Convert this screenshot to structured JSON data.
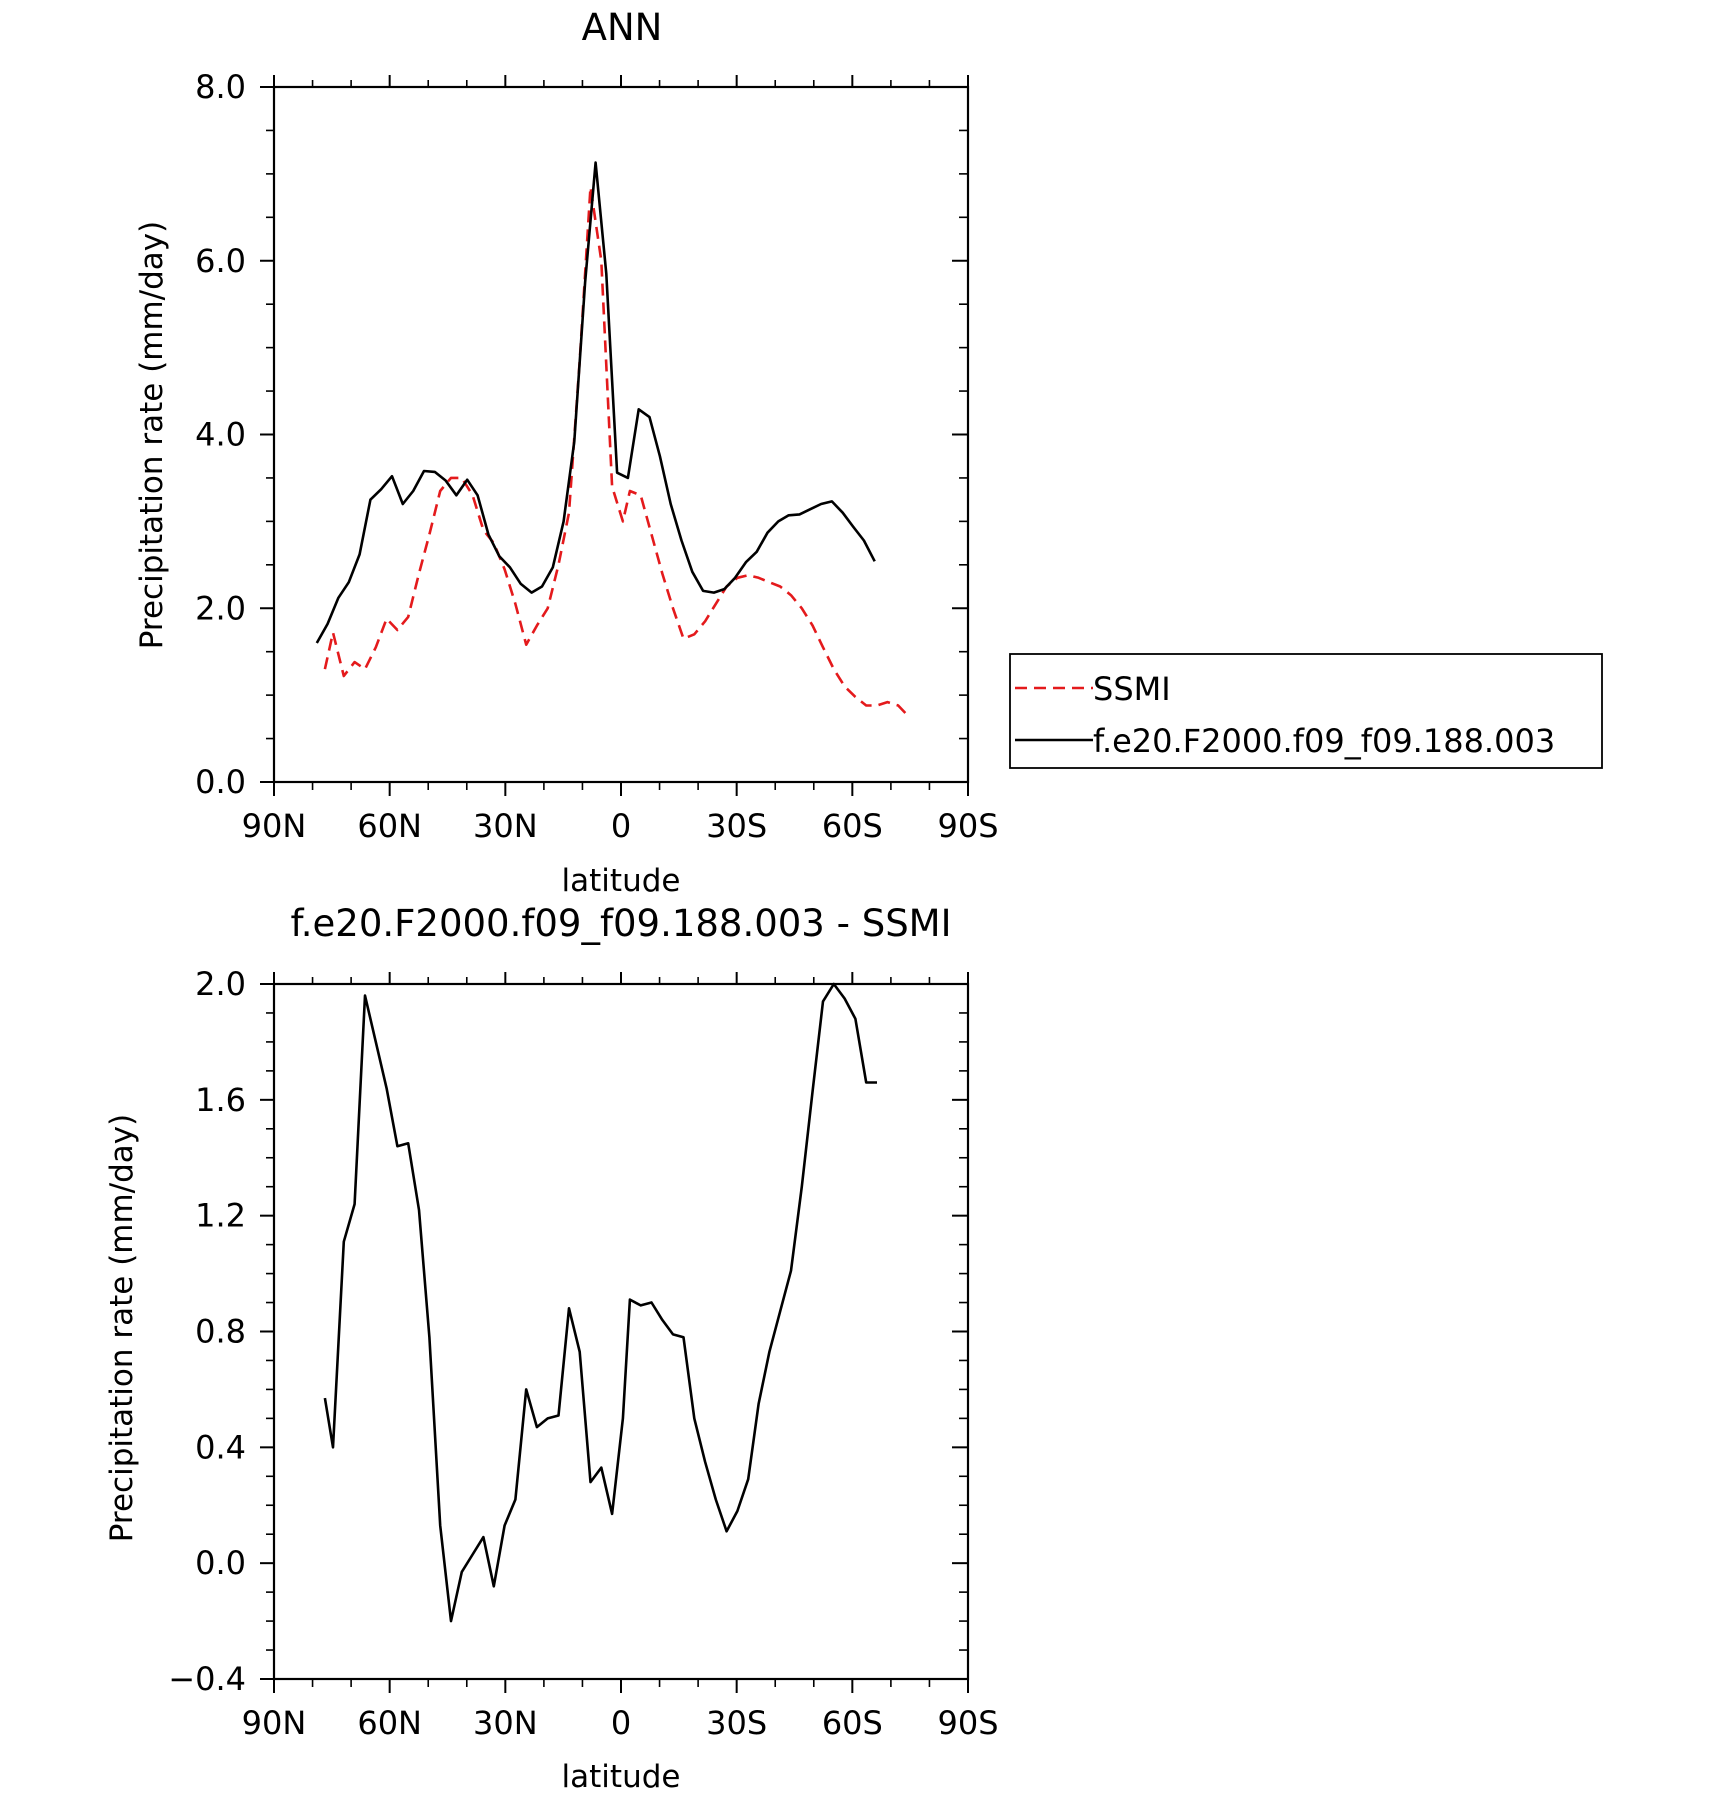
{
  "chart_data": [
    {
      "type": "line",
      "title": "ANN",
      "xlabel": "latitude",
      "ylabel": "Precipitation rate (mm/day)",
      "xlim": [
        90,
        -90
      ],
      "ylim": [
        0,
        8
      ],
      "xticks": [
        {
          "value": 90,
          "label": "90N"
        },
        {
          "value": 60,
          "label": "60N"
        },
        {
          "value": 30,
          "label": "30N"
        },
        {
          "value": 0,
          "label": "0"
        },
        {
          "value": -30,
          "label": "30S"
        },
        {
          "value": -60,
          "label": "60S"
        },
        {
          "value": -90,
          "label": "90S"
        }
      ],
      "yticks": [
        {
          "value": 0,
          "label": "0.0"
        },
        {
          "value": 2,
          "label": "2.0"
        },
        {
          "value": 4,
          "label": "4.0"
        },
        {
          "value": 6,
          "label": "6.0"
        },
        {
          "value": 8,
          "label": "8.0"
        }
      ],
      "legend_position": "right",
      "series": [
        {
          "name": "SSMI",
          "color": "#e41a1c",
          "style": "dashed",
          "x": [
            76.8,
            74.7,
            71.9,
            69.1,
            66.4,
            63.6,
            60.8,
            58.0,
            55.2,
            52.4,
            49.7,
            46.9,
            44.1,
            41.3,
            38.5,
            35.7,
            33.0,
            30.2,
            27.4,
            24.6,
            21.8,
            19.0,
            16.2,
            13.5,
            10.7,
            7.9,
            5.1,
            2.3,
            -0.5,
            -2.3,
            -5.1,
            -7.9,
            -10.7,
            -13.5,
            -16.2,
            -19.0,
            -21.8,
            -24.6,
            -27.4,
            -30.2,
            -33.0,
            -35.7,
            -38.5,
            -41.3,
            -44.1,
            -46.9,
            -49.7,
            -52.4,
            -55.2,
            -58.0,
            -60.8,
            -63.6,
            -66.4,
            -69.1,
            -71.9,
            -74.7
          ],
          "y": [
            1.3,
            1.72,
            1.22,
            1.38,
            1.3,
            1.55,
            1.88,
            1.75,
            1.9,
            2.4,
            2.85,
            3.35,
            3.5,
            3.5,
            3.3,
            2.9,
            2.75,
            2.45,
            2.05,
            1.58,
            1.8,
            2.0,
            2.5,
            3.1,
            4.85,
            6.85,
            6.0,
            3.4,
            3.0,
            3.35,
            3.3,
            2.85,
            2.4,
            2.0,
            1.65,
            1.7,
            1.85,
            2.05,
            2.25,
            2.35,
            2.38,
            2.35,
            2.3,
            2.25,
            2.15,
            2.0,
            1.8,
            1.55,
            1.3,
            1.1,
            0.98,
            0.88,
            0.88,
            0.92,
            0.88,
            0.75
          ]
        },
        {
          "name": "f.e20.F2000.f09_f09.188.003",
          "color": "#000000",
          "style": "solid",
          "x": [
            78.9,
            76.1,
            73.3,
            70.6,
            67.8,
            65.0,
            62.2,
            59.4,
            56.6,
            53.9,
            51.1,
            48.3,
            45.5,
            42.7,
            39.9,
            37.2,
            34.4,
            31.6,
            28.8,
            26.0,
            23.2,
            20.5,
            17.7,
            14.9,
            12.1,
            9.3,
            6.6,
            3.8,
            1.0,
            -1.8,
            -4.6,
            -7.4,
            -10.1,
            -12.9,
            -15.7,
            -18.5,
            -21.3,
            -24.1,
            -26.8,
            -29.6,
            -32.4,
            -35.2,
            -38.0,
            -40.8,
            -43.5,
            -46.3,
            -49.1,
            -51.9,
            -54.7,
            -57.5,
            -60.2,
            -63.0,
            -65.8
          ],
          "y": [
            1.6,
            1.82,
            2.12,
            2.3,
            2.62,
            3.25,
            3.37,
            3.52,
            3.2,
            3.35,
            3.58,
            3.57,
            3.47,
            3.3,
            3.48,
            3.3,
            2.85,
            2.6,
            2.47,
            2.28,
            2.18,
            2.25,
            2.47,
            3.0,
            3.92,
            5.75,
            7.13,
            5.85,
            3.56,
            3.5,
            4.29,
            4.2,
            3.75,
            3.2,
            2.78,
            2.42,
            2.2,
            2.18,
            2.22,
            2.35,
            2.53,
            2.65,
            2.87,
            3.0,
            3.07,
            3.08,
            3.14,
            3.2,
            3.23,
            3.1,
            2.94,
            2.78,
            2.54
          ]
        }
      ]
    },
    {
      "type": "line",
      "title": "f.e20.F2000.f09_f09.188.003 - SSMI",
      "xlabel": "latitude",
      "ylabel": "Precipitation rate (mm/day)",
      "xlim": [
        90,
        -90
      ],
      "ylim": [
        -0.4,
        2.0
      ],
      "xticks": [
        {
          "value": 90,
          "label": "90N"
        },
        {
          "value": 60,
          "label": "60N"
        },
        {
          "value": 30,
          "label": "30N"
        },
        {
          "value": 0,
          "label": "0"
        },
        {
          "value": -30,
          "label": "30S"
        },
        {
          "value": -60,
          "label": "60S"
        },
        {
          "value": -90,
          "label": "90S"
        }
      ],
      "yticks": [
        {
          "value": -0.4,
          "label": "−0.4"
        },
        {
          "value": 0.0,
          "label": "0.0"
        },
        {
          "value": 0.4,
          "label": "0.4"
        },
        {
          "value": 0.8,
          "label": "0.8"
        },
        {
          "value": 1.2,
          "label": "1.2"
        },
        {
          "value": 1.6,
          "label": "1.6"
        },
        {
          "value": 2.0,
          "label": "2.0"
        }
      ],
      "series": [
        {
          "color": "#000000",
          "style": "solid",
          "x": [
            76.8,
            74.7,
            71.9,
            69.1,
            66.4,
            63.6,
            60.8,
            58.0,
            55.2,
            52.4,
            49.7,
            46.9,
            44.1,
            41.3,
            38.5,
            35.7,
            33.0,
            30.2,
            27.4,
            24.6,
            21.8,
            19.0,
            16.2,
            13.5,
            10.7,
            7.9,
            5.1,
            2.3,
            -0.5,
            -2.3,
            -5.1,
            -7.9,
            -10.7,
            -13.5,
            -16.2,
            -19.0,
            -21.8,
            -24.6,
            -27.4,
            -30.2,
            -33.0,
            -35.7,
            -38.5,
            -41.3,
            -44.1,
            -46.9,
            -49.7,
            -52.4,
            -55.2,
            -58.0,
            -60.8,
            -63.6,
            -66.4
          ],
          "y": [
            0.57,
            0.4,
            1.11,
            1.24,
            1.96,
            1.8,
            1.64,
            1.44,
            1.45,
            1.22,
            0.78,
            0.13,
            -0.2,
            -0.03,
            0.03,
            0.09,
            -0.08,
            0.13,
            0.22,
            0.6,
            0.47,
            0.5,
            0.51,
            0.88,
            0.73,
            0.28,
            0.33,
            0.17,
            0.5,
            0.91,
            0.89,
            0.9,
            0.84,
            0.79,
            0.78,
            0.5,
            0.35,
            0.22,
            0.11,
            0.18,
            0.29,
            0.55,
            0.73,
            0.87,
            1.01,
            1.3,
            1.63,
            1.94,
            2.0,
            1.95,
            1.88,
            1.66,
            1.66
          ]
        }
      ]
    }
  ]
}
